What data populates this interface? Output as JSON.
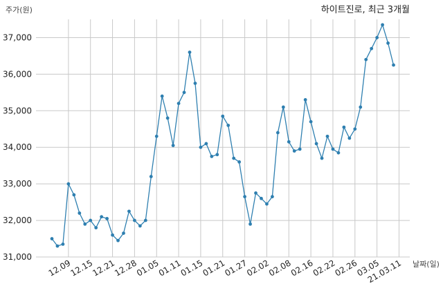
{
  "chart_data": {
    "type": "line",
    "title": "하이트진로, 최근 3개월",
    "ylabel": "주가(원)",
    "xlabel": "날짜(일)",
    "ylim": [
      31000,
      37500
    ],
    "yticks": [
      31000,
      32000,
      33000,
      34000,
      35000,
      36000,
      37000
    ],
    "ytick_labels": [
      "31,000",
      "32,000",
      "33,000",
      "34,000",
      "35,000",
      "36,000",
      "37,000"
    ],
    "xticks": [
      {
        "index": 3,
        "label": "12.09"
      },
      {
        "index": 7,
        "label": "12.15"
      },
      {
        "index": 11,
        "label": "12.21"
      },
      {
        "index": 15,
        "label": "12.28"
      },
      {
        "index": 19,
        "label": "01.05"
      },
      {
        "index": 23,
        "label": "01.11"
      },
      {
        "index": 27,
        "label": "01.15"
      },
      {
        "index": 31,
        "label": "01.21"
      },
      {
        "index": 35,
        "label": "01.27"
      },
      {
        "index": 39,
        "label": "02.02"
      },
      {
        "index": 43,
        "label": "02.08"
      },
      {
        "index": 47,
        "label": "02.16"
      },
      {
        "index": 51,
        "label": "02.22"
      },
      {
        "index": 55,
        "label": "02.26"
      },
      {
        "index": 59,
        "label": "03.05"
      },
      {
        "index": 63,
        "label": "21.03.11"
      }
    ],
    "grid": true,
    "series": [
      {
        "color": "#2e7fb0",
        "values": [
          31500,
          31300,
          31350,
          33000,
          32700,
          32200,
          31900,
          32000,
          31800,
          32100,
          32050,
          31600,
          31450,
          31650,
          32250,
          32000,
          31850,
          32000,
          33200,
          34300,
          35400,
          34800,
          34050,
          35200,
          35500,
          36600,
          35750,
          34000,
          34100,
          33750,
          33800,
          34850,
          34600,
          33700,
          33600,
          32650,
          31900,
          32750,
          32600,
          32450,
          32650,
          34400,
          35100,
          34150,
          33900,
          33950,
          35300,
          34700,
          34100,
          33700,
          34300,
          33950,
          33850,
          34550,
          34250,
          34500,
          35100,
          36400,
          36700,
          37000,
          37350,
          36850,
          36250
        ]
      }
    ]
  }
}
